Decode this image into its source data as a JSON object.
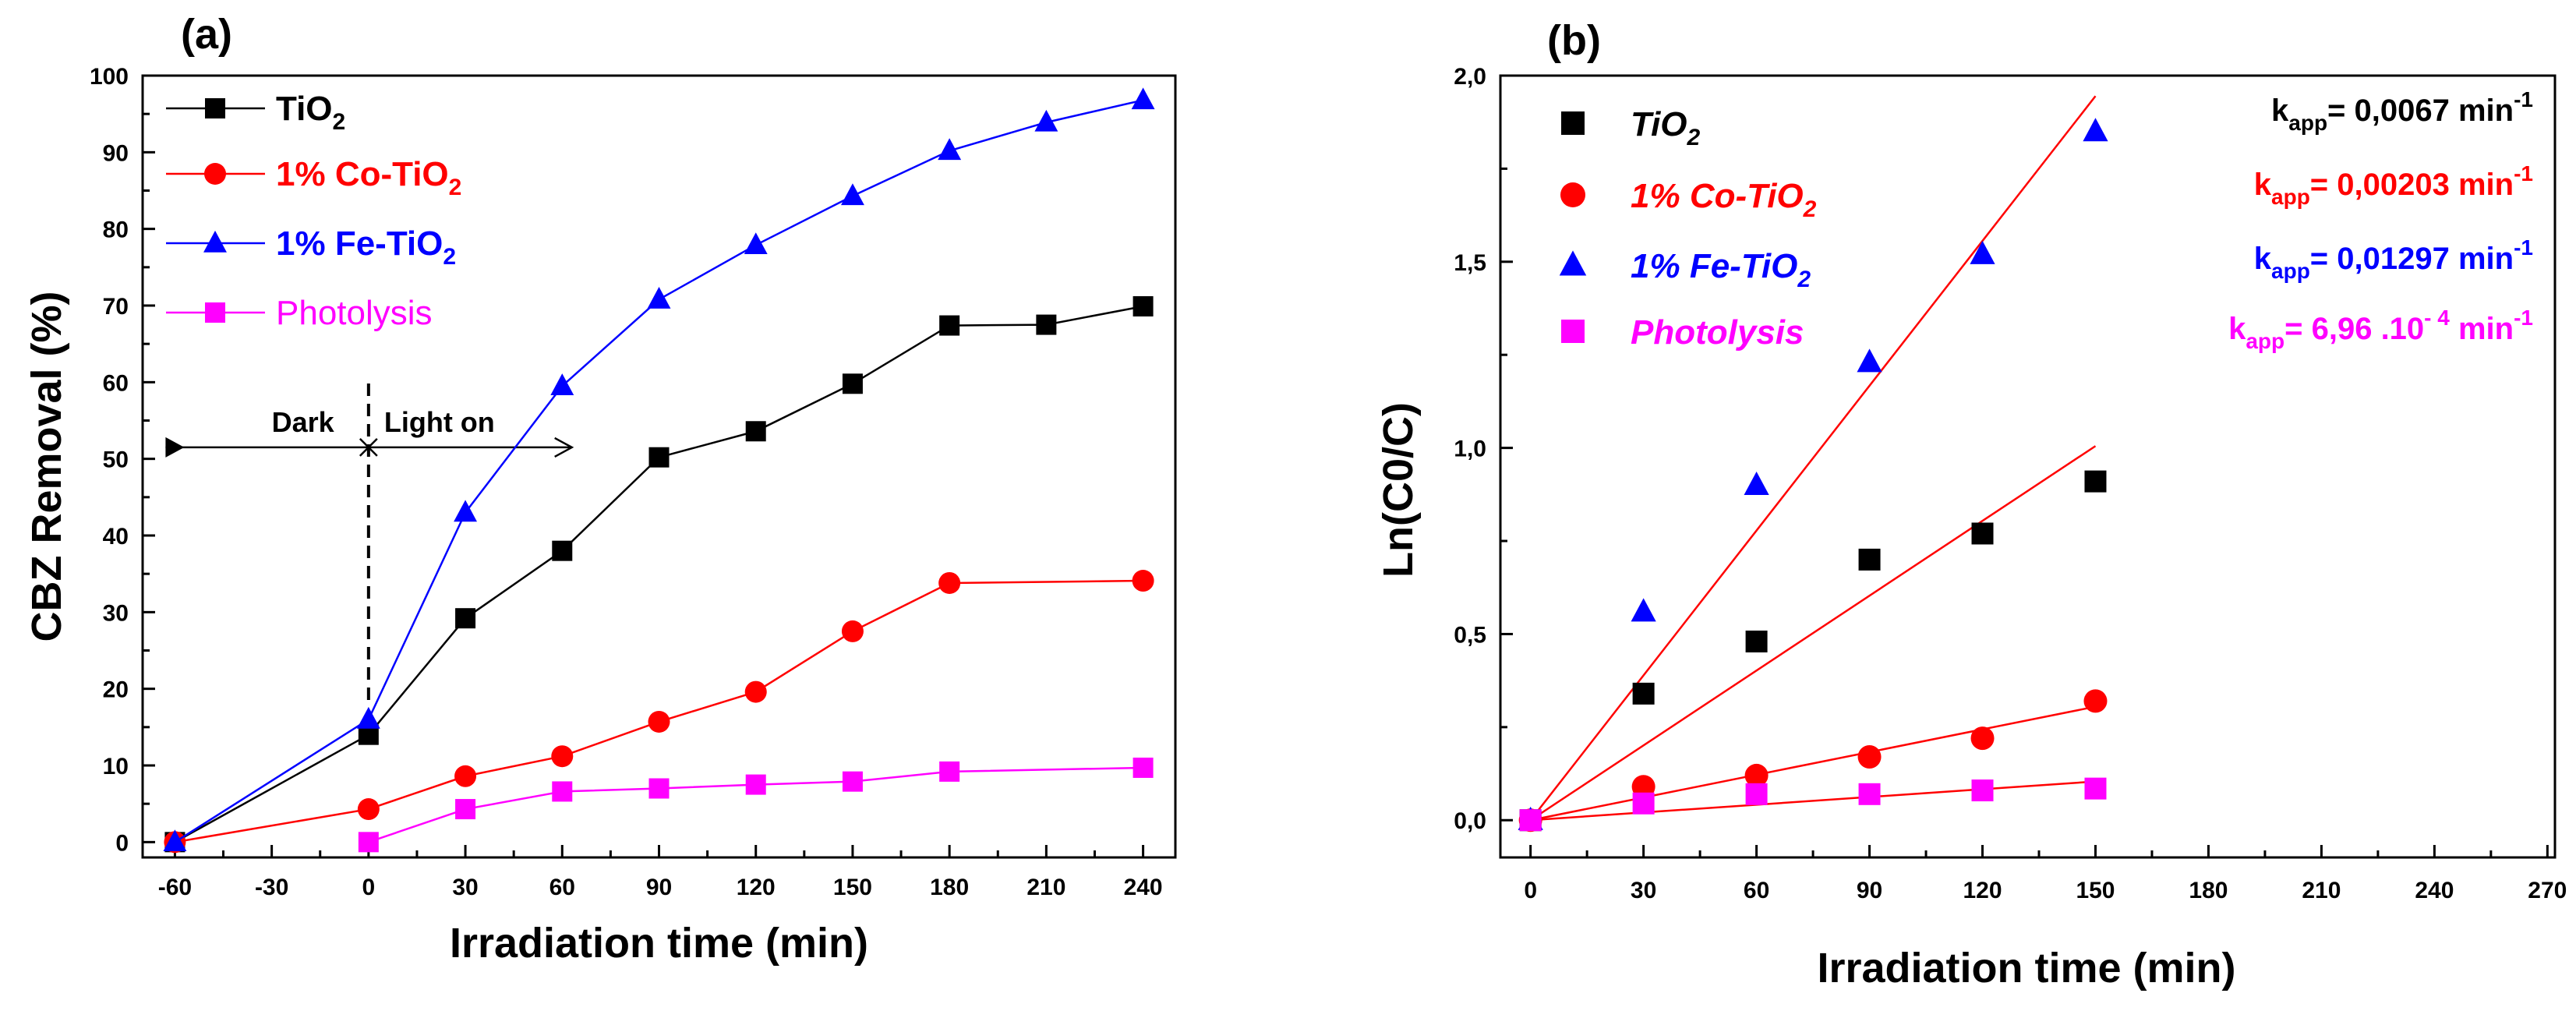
{
  "chart_data": [
    {
      "type": "line",
      "panel_label": "(a)",
      "xlabel": "Irradiation time (min)",
      "ylabel": "CBZ Removal (%)",
      "xlim": [
        -70,
        250
      ],
      "ylim": [
        -2,
        100
      ],
      "xticks": [
        -60,
        -30,
        0,
        30,
        60,
        90,
        120,
        150,
        180,
        210,
        240
      ],
      "xtick_labels": [
        "-60",
        "-30",
        "0",
        "30",
        "60",
        "90",
        "120",
        "150",
        "180",
        "210",
        "240"
      ],
      "yticks": [
        0,
        10,
        20,
        30,
        40,
        50,
        60,
        70,
        80,
        90,
        100
      ],
      "ytick_labels": [
        "0",
        "10",
        "20",
        "30",
        "40",
        "50",
        "60",
        "70",
        "80",
        "90",
        "100"
      ],
      "legend_position": "top-left",
      "series": [
        {
          "name": "TiO",
          "sub": "2",
          "color": "#000000",
          "marker": "square",
          "x": [
            -60,
            0,
            30,
            60,
            90,
            120,
            150,
            180,
            210,
            240
          ],
          "values": [
            0,
            14,
            29.2,
            38,
            50.2,
            53.6,
            59.8,
            67.4,
            67.5,
            69.9
          ]
        },
        {
          "name": "1% Co-TiO",
          "sub": "2",
          "color": "#ff0000",
          "marker": "circle",
          "x": [
            -60,
            0,
            30,
            60,
            90,
            120,
            150,
            180,
            240
          ],
          "values": [
            0,
            4.3,
            8.6,
            11.2,
            15.7,
            19.6,
            27.5,
            33.8,
            34.1
          ]
        },
        {
          "name": "1% Fe-TiO",
          "sub": "2",
          "color": "#0000ff",
          "marker": "triangle",
          "x": [
            -60,
            0,
            30,
            60,
            90,
            120,
            150,
            180,
            210,
            240
          ],
          "values": [
            0,
            16,
            43,
            59.5,
            70.8,
            77.9,
            84.3,
            90.2,
            93.9,
            96.8
          ]
        },
        {
          "name": "Photolysis",
          "sub": "",
          "color": "#ff00ff",
          "marker": "square",
          "x": [
            0,
            30,
            60,
            90,
            120,
            150,
            180,
            240
          ],
          "values": [
            0,
            4.3,
            6.6,
            7,
            7.5,
            7.9,
            9.2,
            9.7
          ]
        }
      ],
      "annotations": {
        "dark_label": "Dark",
        "light_label": "Light on",
        "arrow_y": 51.5,
        "dark_from_x": -60,
        "divider_x": 0,
        "light_to_x": 63
      }
    },
    {
      "type": "scatter",
      "panel_label": "(b)",
      "xlabel": "Irradiation time (min)",
      "ylabel": "Ln(C0/C)",
      "xlim": [
        -8,
        272
      ],
      "ylim": [
        -0.1,
        2.0
      ],
      "xticks": [
        0,
        30,
        60,
        90,
        120,
        150,
        180,
        210,
        240,
        270
      ],
      "xtick_labels": [
        "0",
        "30",
        "60",
        "90",
        "120",
        "150",
        "180",
        "210",
        "240",
        "270"
      ],
      "yticks": [
        0.0,
        0.5,
        1.0,
        1.5,
        2.0
      ],
      "ytick_labels": [
        "0,0",
        "0,5",
        "1,0",
        "1,5",
        "2,0"
      ],
      "legend_position": "top-left",
      "series": [
        {
          "name": "TiO",
          "sub": "2",
          "color": "#000000",
          "marker": "square",
          "x": [
            0,
            30,
            60,
            90,
            120,
            150
          ],
          "values": [
            0,
            0.34,
            0.48,
            0.7,
            0.77,
            0.91
          ],
          "fit_end": [
            150,
            1.005
          ]
        },
        {
          "name": "1% Co-TiO",
          "sub": "2",
          "color": "#ff0000",
          "marker": "circle",
          "x": [
            0,
            30,
            60,
            90,
            120,
            150
          ],
          "values": [
            0,
            0.09,
            0.12,
            0.17,
            0.22,
            0.32
          ],
          "fit_end": [
            150,
            0.305
          ]
        },
        {
          "name": "1% Fe-TiO",
          "sub": "2",
          "color": "#0000ff",
          "marker": "triangle",
          "x": [
            0,
            30,
            60,
            90,
            120,
            150
          ],
          "values": [
            0,
            0.56,
            0.9,
            1.23,
            1.52,
            1.85
          ],
          "fit_end": [
            150,
            1.945
          ]
        },
        {
          "name": "Photolysis",
          "sub": "",
          "color": "#ff00ff",
          "marker": "square",
          "x": [
            0,
            30,
            60,
            90,
            120,
            150
          ],
          "values": [
            0,
            0.045,
            0.07,
            0.07,
            0.08,
            0.085
          ],
          "fit_end": [
            150,
            0.104
          ]
        }
      ],
      "fit_line_color": "#ff0000",
      "kapp": [
        {
          "color": "#000000",
          "label_main": "k",
          "label_sub": "app",
          "value": "= 0,0067 min",
          "sup": "-1"
        },
        {
          "color": "#ff0000",
          "label_main": "k",
          "label_sub": "app",
          "value": "= 0,00203 min",
          "sup": "-1"
        },
        {
          "color": "#0000ff",
          "label_main": "k",
          "label_sub": "app",
          "value": "= 0,01297 min",
          "sup": "-1"
        },
        {
          "color": "#ff00ff",
          "label_main": "k",
          "label_sub": "app",
          "value": "= 6,96 .10",
          "sup": "- 4",
          "value2": " min",
          "sup2": "-1"
        }
      ]
    }
  ]
}
